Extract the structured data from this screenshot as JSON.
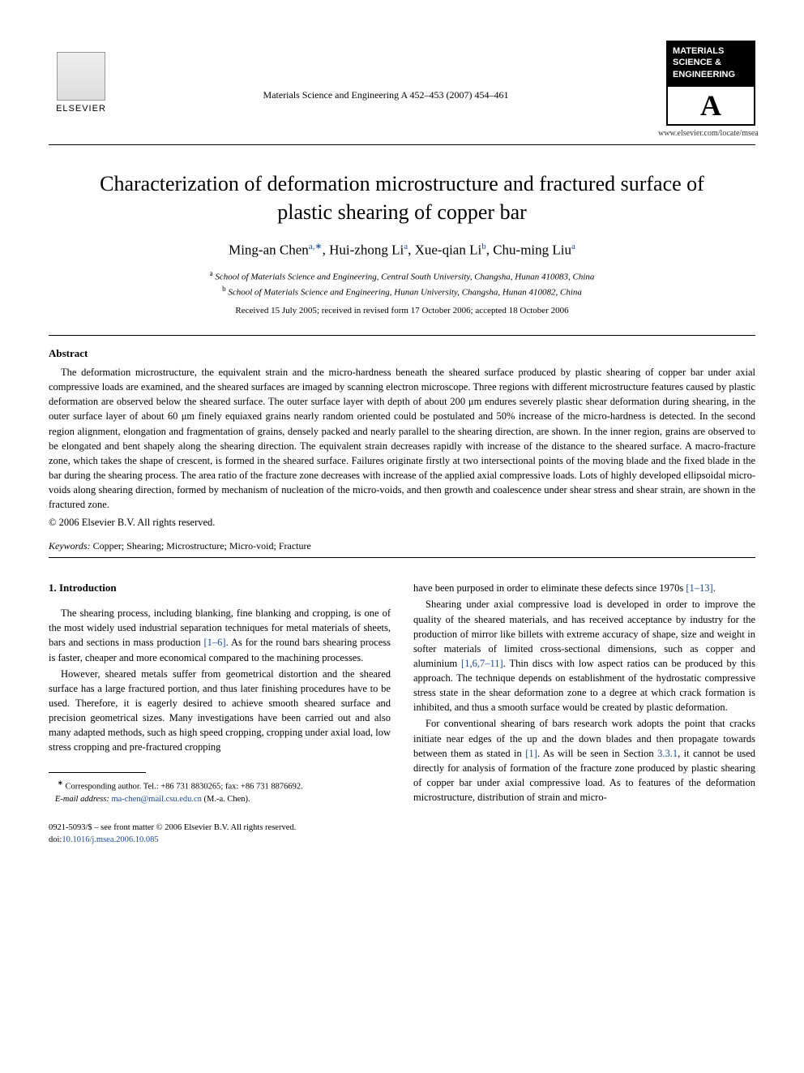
{
  "header": {
    "publisher_name": "ELSEVIER",
    "journal_reference": "Materials Science and Engineering A 452–453 (2007) 454–461",
    "badge_line1": "MATERIALS",
    "badge_line2": "SCIENCE &",
    "badge_line3": "ENGINEERING",
    "badge_letter": "A",
    "journal_url": "www.elsevier.com/locate/msea"
  },
  "title": "Characterization of deformation microstructure and fractured surface of plastic shearing of copper bar",
  "authors": {
    "a1_name": "Ming-an Chen",
    "a1_sup": "a,",
    "a1_star": "∗",
    "a2_name": "Hui-zhong Li",
    "a2_sup": "a",
    "a3_name": "Xue-qian Li",
    "a3_sup": "b",
    "a4_name": "Chu-ming Liu",
    "a4_sup": "a"
  },
  "affiliations": {
    "a_sup": "a",
    "a_text": "School of Materials Science and Engineering, Central South University, Changsha, Hunan 410083, China",
    "b_sup": "b",
    "b_text": "School of Materials Science and Engineering, Hunan University, Changsha, Hunan 410082, China"
  },
  "dates": "Received 15 July 2005; received in revised form 17 October 2006; accepted 18 October 2006",
  "abstract": {
    "heading": "Abstract",
    "text": "The deformation microstructure, the equivalent strain and the micro-hardness beneath the sheared surface produced by plastic shearing of copper bar under axial compressive loads are examined, and the sheared surfaces are imaged by scanning electron microscope. Three regions with different microstructure features caused by plastic deformation are observed below the sheared surface. The outer surface layer with depth of about 200 μm endures severely plastic shear deformation during shearing, in the outer surface layer of about 60 μm finely equiaxed grains nearly random oriented could be postulated and 50% increase of the micro-hardness is detected. In the second region alignment, elongation and fragmentation of grains, densely packed and nearly parallel to the shearing direction, are shown. In the inner region, grains are observed to be elongated and bent shapely along the shearing direction. The equivalent strain decreases rapidly with increase of the distance to the sheared surface. A macro-fracture zone, which takes the shape of crescent, is formed in the sheared surface. Failures originate firstly at two intersectional points of the moving blade and the fixed blade in the bar during the shearing process. The area ratio of the fracture zone decreases with increase of the applied axial compressive loads. Lots of highly developed ellipsoidal micro-voids along shearing direction, formed by mechanism of nucleation of the micro-voids, and then growth and coalescence under shear stress and shear strain, are shown in the fractured zone.",
    "copyright": "© 2006 Elsevier B.V. All rights reserved."
  },
  "keywords": {
    "label": "Keywords:",
    "text": " Copper; Shearing; Microstructure; Micro-void; Fracture"
  },
  "body": {
    "section_heading": "1. Introduction",
    "col1_p1_a": "The shearing process, including blanking, fine blanking and cropping, is one of the most widely used industrial separation techniques for metal materials of sheets, bars and sections in mass production ",
    "col1_p1_ref": "[1–6]",
    "col1_p1_b": ". As for the round bars shearing process is faster, cheaper and more economical compared to the machining processes.",
    "col1_p2": "However, sheared metals suffer from geometrical distortion and the sheared surface has a large fractured portion, and thus later finishing procedures have to be used. Therefore, it is eagerly desired to achieve smooth sheared surface and precision geometrical sizes. Many investigations have been carried out and also many adapted methods, such as high speed cropping, cropping under axial load, low stress cropping and pre-fractured cropping",
    "col2_p1_a": "have been purposed in order to eliminate these defects since 1970s ",
    "col2_p1_ref": "[1–13]",
    "col2_p1_b": ".",
    "col2_p2_a": "Shearing under axial compressive load is developed in order to improve the quality of the sheared materials, and has received acceptance by industry for the production of mirror like billets with extreme accuracy of shape, size and weight in softer materials of limited cross-sectional dimensions, such as copper and aluminium ",
    "col2_p2_ref": "[1,6,7–11]",
    "col2_p2_b": ". Thin discs with low aspect ratios can be produced by this approach. The technique depends on establishment of the hydrostatic compressive stress state in the shear deformation zone to a degree at which crack formation is inhibited, and thus a smooth surface would be created by plastic deformation.",
    "col2_p3_a": "For conventional shearing of bars research work adopts the point that cracks initiate near edges of the up and the down blades and then propagate towards between them as stated in ",
    "col2_p3_ref1": "[1]",
    "col2_p3_b": ". As will be seen in Section ",
    "col2_p3_ref2": "3.3.1",
    "col2_p3_c": ", it cannot be used directly for analysis of formation of the fracture zone produced by plastic shearing of copper bar under axial compressive load. As to features of the deformation microstructure, distribution of strain and micro-"
  },
  "footnote": {
    "star": "∗",
    "text": " Corresponding author. Tel.: +86 731 8830265; fax: +86 731 8876692.",
    "email_label": "E-mail address:",
    "email": "ma-chen@mail.csu.edu.cn",
    "email_suffix": " (M.-a. Chen)."
  },
  "footer": {
    "issn_line": "0921-5093/$ – see front matter © 2006 Elsevier B.V. All rights reserved.",
    "doi_label": "doi:",
    "doi": "10.1016/j.msea.2006.10.085"
  }
}
